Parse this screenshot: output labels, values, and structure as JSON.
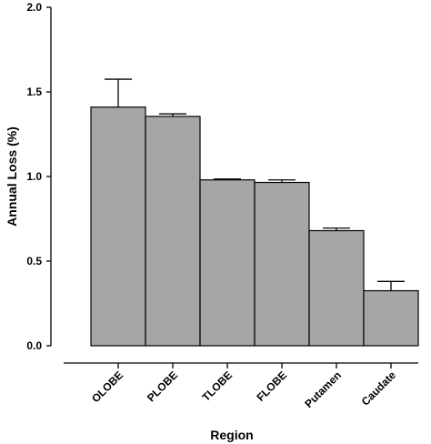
{
  "chart_data": {
    "type": "bar",
    "categories": [
      "OLOBE",
      "PLOBE",
      "TLOBE",
      "FLOBE",
      "Putamen",
      "Caudate"
    ],
    "values": [
      1.41,
      1.355,
      0.98,
      0.965,
      0.68,
      0.325
    ],
    "error_upper": [
      1.575,
      1.37,
      0.985,
      0.98,
      0.695,
      0.38
    ],
    "xlabel": "Region",
    "ylabel": "Annual Loss (%)",
    "ylim": [
      0,
      2.0
    ],
    "yticks": [
      0,
      0.5,
      1.0,
      1.5,
      2.0
    ],
    "ytick_labels": [
      "0.0",
      "0.5",
      "1.0",
      "1.5",
      "2.0"
    ],
    "grid": false,
    "colors": {
      "bar_fill": "#a6a6a6",
      "bar_stroke": "#000000",
      "axis": "#000000"
    }
  }
}
